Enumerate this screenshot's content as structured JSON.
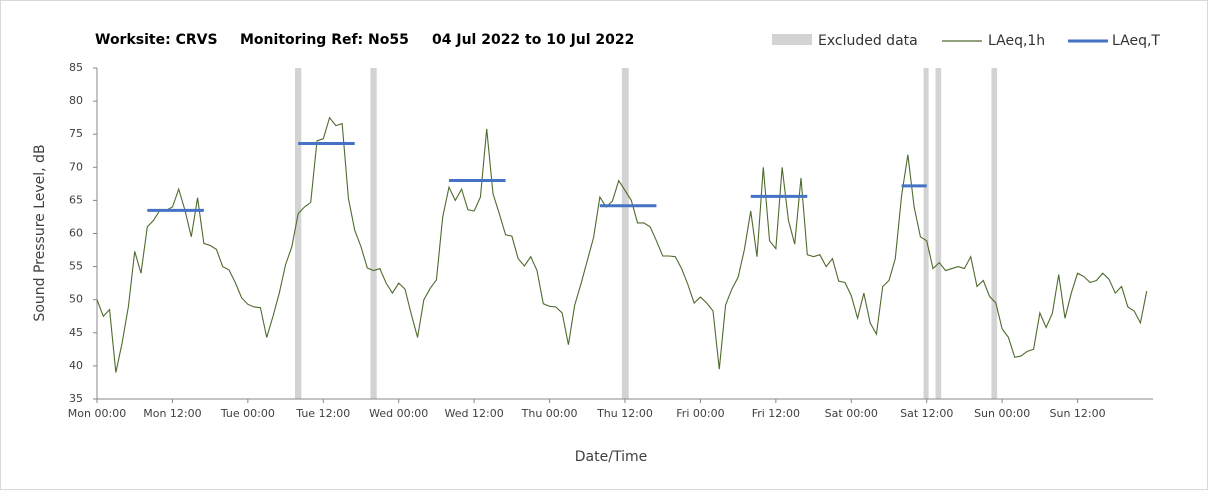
{
  "chart_data": {
    "type": "line",
    "title_parts": [
      "Worksite: CRVS",
      "Monitoring Ref: No55",
      "04 Jul 2022 to 10 Jul 2022"
    ],
    "xlabel": "Date/Time",
    "ylabel": "Sound Pressure Level, dB",
    "xlim": [
      0,
      168
    ],
    "ylim": [
      35,
      85
    ],
    "yticks": [
      35,
      40,
      45,
      50,
      55,
      60,
      65,
      70,
      75,
      80,
      85
    ],
    "xticks": [
      {
        "value": 0,
        "label": "Mon 00:00"
      },
      {
        "value": 12,
        "label": "Mon 12:00"
      },
      {
        "value": 24,
        "label": "Tue 00:00"
      },
      {
        "value": 36,
        "label": "Tue 12:00"
      },
      {
        "value": 48,
        "label": "Wed 00:00"
      },
      {
        "value": 60,
        "label": "Wed 12:00"
      },
      {
        "value": 72,
        "label": "Thu 00:00"
      },
      {
        "value": 84,
        "label": "Thu 12:00"
      },
      {
        "value": 96,
        "label": "Fri 00:00"
      },
      {
        "value": 108,
        "label": "Fri 12:00"
      },
      {
        "value": 120,
        "label": "Sat 00:00"
      },
      {
        "value": 132,
        "label": "Sat 12:00"
      },
      {
        "value": 144,
        "label": "Sun 00:00"
      },
      {
        "value": 156,
        "label": "Sun 12:00"
      }
    ],
    "excluded": {
      "name": "Excluded data",
      "color": "#d3d3d3",
      "ranges": [
        [
          31.5,
          32.5
        ],
        [
          43.5,
          44.5
        ],
        [
          83.5,
          84.6
        ],
        [
          131.5,
          132.3
        ],
        [
          133.4,
          134.3
        ],
        [
          142.3,
          143.2
        ]
      ]
    },
    "series": [
      {
        "name": "LAeq,1h",
        "color": "#4e6b2e",
        "x": [
          0,
          1,
          2,
          3,
          4,
          5,
          6,
          7,
          8,
          9,
          10,
          11,
          12,
          13,
          14,
          15,
          16,
          17,
          18,
          19,
          20,
          21,
          22,
          23,
          24,
          25,
          26,
          27,
          28,
          29,
          30,
          31,
          32,
          33,
          34,
          35,
          36,
          37,
          38,
          39,
          40,
          41,
          42,
          43,
          44,
          45,
          46,
          47,
          48,
          49,
          50,
          51,
          52,
          53,
          54,
          55,
          56,
          57,
          58,
          59,
          60,
          61,
          62,
          63,
          64,
          65,
          66,
          67,
          68,
          69,
          70,
          71,
          72,
          73,
          74,
          75,
          76,
          77,
          78,
          79,
          80,
          81,
          82,
          83,
          84,
          85,
          86,
          87,
          88,
          89,
          90,
          91,
          92,
          93,
          94,
          95,
          96,
          97,
          98,
          99,
          100,
          101,
          102,
          103,
          104,
          105,
          106,
          107,
          108,
          109,
          110,
          111,
          112,
          113,
          114,
          115,
          116,
          117,
          118,
          119,
          120,
          121,
          122,
          123,
          124,
          125,
          126,
          127,
          128,
          129,
          130,
          131,
          132,
          133,
          134,
          135,
          136,
          137,
          138,
          139,
          140,
          141,
          142,
          143,
          144,
          145,
          146,
          147,
          148,
          149,
          150,
          151,
          152,
          153,
          154,
          155,
          156,
          157,
          158,
          159,
          160,
          161,
          162,
          163,
          164,
          165,
          166,
          167
        ],
        "values": [
          50,
          47.5,
          48.5,
          39,
          43.5,
          49,
          57.3,
          54,
          61,
          62,
          63.5,
          63.5,
          64,
          66.7,
          63.5,
          59.5,
          65.4,
          58.5,
          58.2,
          57.6,
          55,
          54.5,
          52.6,
          50.3,
          49.3,
          48.9,
          48.8,
          44.3,
          47.5,
          51,
          55.3,
          58,
          63,
          64,
          64.7,
          74,
          74.3,
          77.5,
          76.3,
          76.6,
          65.3,
          60.5,
          58,
          54.8,
          54.4,
          54.7,
          52.5,
          51,
          52.5,
          51.6,
          47.8,
          44.3,
          50,
          51.7,
          53,
          62.5,
          67,
          65,
          66.7,
          63.6,
          63.4,
          65.5,
          75.8,
          66,
          63,
          59.8,
          59.6,
          56.2,
          55.1,
          56.5,
          54.4,
          49.4,
          49,
          48.9,
          48,
          43.2,
          49.2,
          52.4,
          55.9,
          59.4,
          65.5,
          64,
          64.9,
          68,
          66.5,
          65,
          61.6,
          61.6,
          61,
          58.9,
          56.6,
          56.6,
          56.5,
          54.7,
          52.3,
          49.5,
          50.4,
          49.5,
          48.3,
          39.5,
          49.2,
          51.6,
          53.4,
          57.6,
          63.4,
          56.5,
          70,
          58.9,
          57.7,
          70,
          62,
          58.4,
          68.4,
          56.8,
          56.5,
          56.8,
          55,
          56.2,
          52.8,
          52.6,
          50.6,
          47.2,
          51,
          46.5,
          44.8,
          52,
          52.9,
          56.2,
          65.7,
          71.9,
          64,
          59.5,
          58.9,
          54.7,
          55.6,
          54.4,
          54.7,
          55,
          54.7,
          56.5,
          52,
          52.9,
          50.5,
          49.5,
          45.6,
          44.3,
          41.3,
          41.5,
          42.2,
          42.5,
          48,
          45.8,
          48,
          53.8,
          47.2,
          51,
          54,
          53.5,
          52.6,
          52.9,
          54,
          53.1,
          51,
          52,
          48.9,
          48.3,
          46.5,
          51.3
        ]
      },
      {
        "name": "LAeq,T",
        "color": "#4472c4",
        "periods": [
          [
            8,
            17
          ],
          [
            32,
            41
          ],
          [
            56,
            65
          ],
          [
            80,
            89
          ],
          [
            104,
            113
          ],
          [
            128,
            132
          ]
        ],
        "values": [
          63.5,
          73.6,
          68,
          64.2,
          65.6,
          67.2
        ]
      }
    ]
  }
}
